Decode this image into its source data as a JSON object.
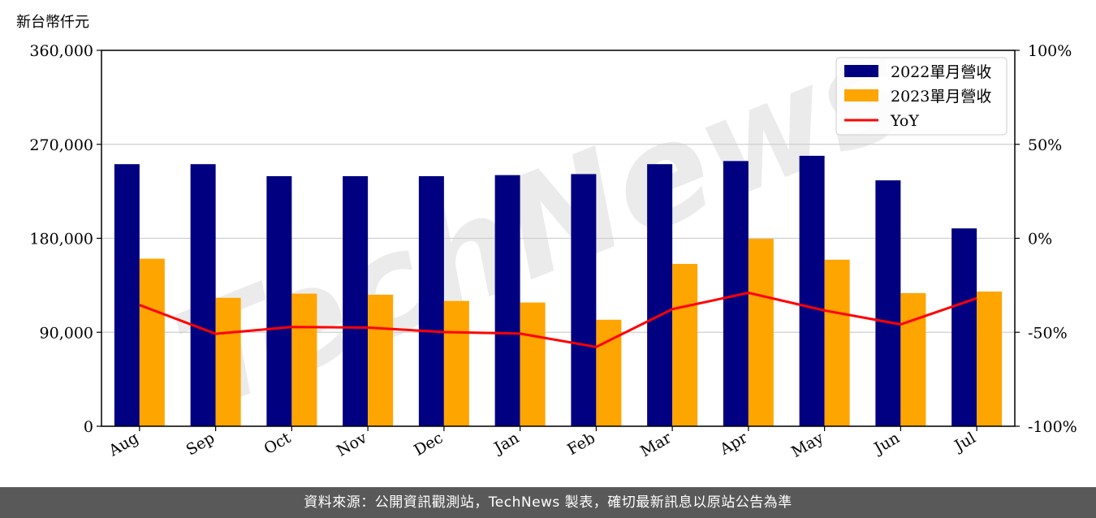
{
  "unit_label": "新台幣仟元",
  "watermark": "TechNews",
  "footer_text": "資料來源：公開資訊觀測站，TechNews 製表，確切最新訊息以原站公告為準",
  "chart_data": {
    "type": "bar",
    "categories": [
      "Aug",
      "Sep",
      "Oct",
      "Nov",
      "Dec",
      "Jan",
      "Feb",
      "Mar",
      "Apr",
      "May",
      "Jun",
      "Jul"
    ],
    "series": [
      {
        "name": "2022單月營收",
        "type": "bar",
        "color": "#000080",
        "values": [
          251000,
          251000,
          239500,
          239500,
          239500,
          240500,
          241500,
          251000,
          254000,
          259000,
          235500,
          189500
        ]
      },
      {
        "name": "2023單月營收",
        "type": "bar",
        "color": "#ffa500",
        "values": [
          160500,
          123000,
          127000,
          126000,
          120000,
          118500,
          102000,
          155500,
          179500,
          159500,
          127500,
          129000
        ]
      }
    ],
    "line_series": {
      "name": "YoY",
      "color": "#ff0000",
      "axis": "right",
      "values": [
        -35.5,
        -50.8,
        -47.2,
        -47.5,
        -49.9,
        -50.7,
        -57.8,
        -37.7,
        -29.0,
        -38.4,
        -45.8,
        -31.9
      ]
    },
    "ylim": [
      0,
      360000
    ],
    "y_ticks": [
      "0",
      "90,000",
      "180,000",
      "270,000",
      "360,000"
    ],
    "y2lim": [
      -100,
      100
    ],
    "y2_ticks": [
      "-100%",
      "-50%",
      "0%",
      "50%",
      "100%"
    ],
    "grid": "horizontal",
    "legend_position": "top-right"
  }
}
